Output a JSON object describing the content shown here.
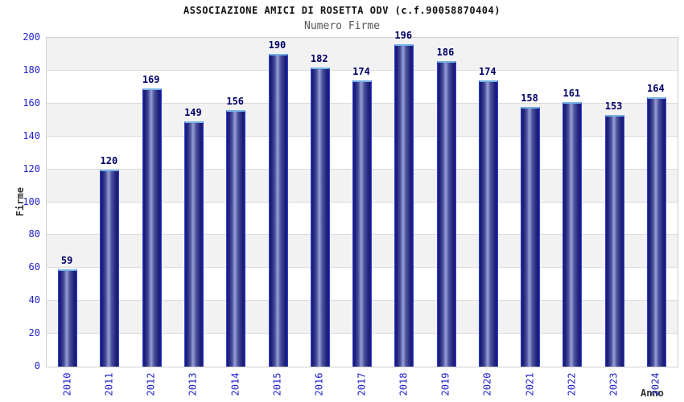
{
  "chart_data": {
    "type": "bar",
    "title": "ASSOCIAZIONE AMICI DI ROSETTA ODV (c.f.90058870404)",
    "subtitle": "Numero Firme",
    "xlabel": "Anno",
    "ylabel": "Firme",
    "categories": [
      "2010",
      "2011",
      "2012",
      "2013",
      "2014",
      "2015",
      "2016",
      "2017",
      "2018",
      "2019",
      "2020",
      "2021",
      "2022",
      "2023",
      "2024"
    ],
    "values": [
      59,
      120,
      169,
      149,
      156,
      190,
      182,
      174,
      196,
      186,
      174,
      158,
      161,
      153,
      164
    ],
    "ylim": [
      0,
      200
    ],
    "ytick_step": 20,
    "grid": true,
    "legend": "none",
    "bands_alternating": true,
    "colors": {
      "tick_label": "#2222cc",
      "value_label": "#000066",
      "bar_dark": "#1e1e78",
      "bar_mid": "#4b529e",
      "bar_light": "#9aa0d4",
      "bar_edge": "#2d3fd9",
      "bar_cap": "#74b2e6",
      "band_gray": "#f2f2f2",
      "band_white": "#ffffff",
      "grid_line": "#dcdcdc",
      "plot_border": "#d0d0d0",
      "title_color": "#111111",
      "subtitle_color": "#555555",
      "axis_title_color": "#333333"
    }
  }
}
